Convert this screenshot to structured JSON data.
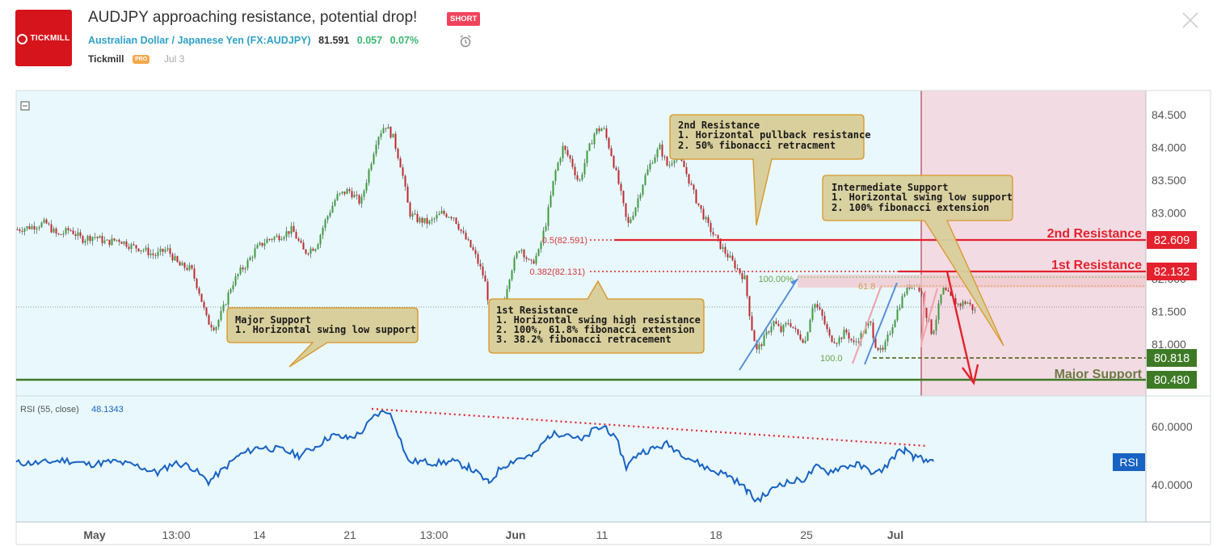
{
  "header": {
    "logo_text": "TICKMILL",
    "title": "AUDJPY approaching resistance, potential drop!",
    "badge": "SHORT",
    "pair_name": "Australian Dollar / Japanese Yen",
    "ticker_open": "(",
    "ticker": "FX:AUDJPY",
    "ticker_close": ")",
    "price": "81.591",
    "change": "0.057",
    "change_pct": "0.07%",
    "author": "Tickmill",
    "author_badge": "PRO",
    "date": "Jul 3"
  },
  "colors": {
    "chart_bg": "#e8f8fc",
    "bull": "#3d9c3d",
    "bear": "#c2272d",
    "resistance": "#e3222d",
    "support": "#3e7a26",
    "rsi": "#1862c4",
    "forecast_zone": "#f3dbe3",
    "callout": "#d8cf9c"
  },
  "chart_data": {
    "type": "candlestick",
    "symbol": "FX:AUDJPY",
    "price_axis": {
      "ticks": [
        84.5,
        84.0,
        83.5,
        83.0,
        82.0,
        81.5,
        81.0
      ],
      "tick_labels": [
        "84.500",
        "84.000",
        "83.500",
        "83.000",
        "82.000",
        "81.500",
        "81.000"
      ]
    },
    "time_axis": {
      "ticks": [
        "May",
        "13:00",
        "14",
        "21",
        "13:00",
        "Jun",
        "11",
        "18",
        "25",
        "Jul"
      ]
    },
    "close_path": [
      [
        0,
        82.75
      ],
      [
        20,
        82.8
      ],
      [
        35,
        82.85
      ],
      [
        50,
        82.65
      ],
      [
        65,
        82.75
      ],
      [
        80,
        82.6
      ],
      [
        95,
        82.65
      ],
      [
        110,
        82.55
      ],
      [
        125,
        82.6
      ],
      [
        140,
        82.5
      ],
      [
        155,
        82.45
      ],
      [
        170,
        82.35
      ],
      [
        185,
        82.45
      ],
      [
        200,
        82.2
      ],
      [
        215,
        82.15
      ],
      [
        225,
        81.8
      ],
      [
        235,
        81.35
      ],
      [
        245,
        81.25
      ],
      [
        255,
        81.55
      ],
      [
        265,
        81.9
      ],
      [
        275,
        82.1
      ],
      [
        285,
        82.25
      ],
      [
        295,
        82.45
      ],
      [
        310,
        82.6
      ],
      [
        325,
        82.65
      ],
      [
        340,
        82.75
      ],
      [
        355,
        82.4
      ],
      [
        370,
        82.5
      ],
      [
        380,
        82.85
      ],
      [
        395,
        83.25
      ],
      [
        410,
        83.35
      ],
      [
        425,
        83.15
      ],
      [
        435,
        83.65
      ],
      [
        445,
        84.15
      ],
      [
        455,
        84.35
      ],
      [
        465,
        84.15
      ],
      [
        475,
        83.7
      ],
      [
        485,
        83.0
      ],
      [
        495,
        82.9
      ],
      [
        510,
        82.85
      ],
      [
        525,
        83.0
      ],
      [
        540,
        82.95
      ],
      [
        550,
        82.7
      ],
      [
        565,
        82.4
      ],
      [
        578,
        82.0
      ],
      [
        588,
        81.3
      ],
      [
        598,
        81.45
      ],
      [
        610,
        82.1
      ],
      [
        622,
        82.5
      ],
      [
        635,
        82.2
      ],
      [
        645,
        82.4
      ],
      [
        655,
        82.9
      ],
      [
        665,
        83.6
      ],
      [
        675,
        84.0
      ],
      [
        685,
        83.8
      ],
      [
        695,
        83.45
      ],
      [
        705,
        83.9
      ],
      [
        715,
        84.25
      ],
      [
        725,
        84.3
      ],
      [
        735,
        83.9
      ],
      [
        745,
        83.4
      ],
      [
        755,
        82.8
      ],
      [
        765,
        83.1
      ],
      [
        775,
        83.5
      ],
      [
        785,
        83.8
      ],
      [
        795,
        84.0
      ],
      [
        805,
        83.7
      ],
      [
        815,
        83.9
      ],
      [
        825,
        83.7
      ],
      [
        840,
        83.2
      ],
      [
        855,
        82.8
      ],
      [
        870,
        82.5
      ],
      [
        885,
        82.25
      ],
      [
        900,
        82.0
      ],
      [
        908,
        81.3
      ],
      [
        915,
        80.9
      ],
      [
        925,
        81.1
      ],
      [
        935,
        81.35
      ],
      [
        945,
        81.2
      ],
      [
        955,
        81.35
      ],
      [
        965,
        81.15
      ],
      [
        975,
        81.05
      ],
      [
        985,
        81.65
      ],
      [
        995,
        81.45
      ],
      [
        1005,
        81.1
      ],
      [
        1015,
        81.05
      ],
      [
        1025,
        81.2
      ],
      [
        1035,
        81.0
      ],
      [
        1045,
        81.15
      ],
      [
        1055,
        81.35
      ],
      [
        1062,
        81.0
      ],
      [
        1070,
        80.85
      ],
      [
        1080,
        81.2
      ],
      [
        1090,
        81.55
      ],
      [
        1100,
        81.85
      ],
      [
        1110,
        81.95
      ],
      [
        1118,
        81.8
      ],
      [
        1125,
        81.45
      ],
      [
        1132,
        81.15
      ],
      [
        1138,
        81.45
      ],
      [
        1145,
        81.85
      ],
      [
        1155,
        81.7
      ],
      [
        1165,
        81.6
      ],
      [
        1175,
        81.65
      ],
      [
        1185,
        81.5
      ]
    ],
    "levels": [
      {
        "name": "2nd Resistance",
        "value": 82.609,
        "label": "82.609",
        "fib_label": "0.5(82.591)"
      },
      {
        "name": "1st Resistance",
        "value": 82.132,
        "label": "82.132",
        "fib_label": "0.382(82.131)"
      },
      {
        "name": "Intermediate Support",
        "value": 80.818,
        "label": "80.818"
      },
      {
        "name": "Major Support",
        "value": 80.48,
        "label": "80.480"
      }
    ],
    "fib_extension_labels": [
      "100.00%",
      "61.8",
      "100.0"
    ],
    "callouts": {
      "second_resistance": {
        "title": "2nd Resistance",
        "lines": [
          "1. Horizontal pullback resistance",
          "2. 50% fibonacci retracment"
        ]
      },
      "intermediate_support": {
        "title": "Intermediate Support",
        "lines": [
          "1. Horizontal swing low support",
          "2. 100% fibonacci extension"
        ]
      },
      "first_resistance": {
        "title": "1st Resistance",
        "lines": [
          "1. Horizontal swing high resistance",
          "2. 100%, 61.8% fibonacci extension",
          "3. 38.2% fibonacci retracement"
        ]
      },
      "major_support": {
        "title": "Major Support",
        "lines": [
          "1. Horizontal swing low support"
        ]
      }
    },
    "rsi": {
      "label": "RSI (55, close)",
      "value": "48.1343",
      "tag": "RSI",
      "ticks": [
        60,
        40
      ],
      "tick_labels": [
        "60.0000",
        "40.0000"
      ],
      "path": [
        [
          0,
          47.5
        ],
        [
          30,
          47.5
        ],
        [
          60,
          48.5
        ],
        [
          90,
          47.0
        ],
        [
          120,
          48.0
        ],
        [
          150,
          46.5
        ],
        [
          175,
          44.0
        ],
        [
          195,
          47.5
        ],
        [
          215,
          46.5
        ],
        [
          238,
          41.0
        ],
        [
          255,
          45.0
        ],
        [
          275,
          50.0
        ],
        [
          300,
          53.0
        ],
        [
          330,
          52.0
        ],
        [
          350,
          50.0
        ],
        [
          370,
          53.0
        ],
        [
          390,
          57.0
        ],
        [
          410,
          56.0
        ],
        [
          425,
          57.5
        ],
        [
          445,
          64.0
        ],
        [
          460,
          65.5
        ],
        [
          470,
          60.0
        ],
        [
          485,
          48.0
        ],
        [
          500,
          48.0
        ],
        [
          520,
          47.5
        ],
        [
          540,
          48.0
        ],
        [
          560,
          46.0
        ],
        [
          575,
          43.0
        ],
        [
          585,
          40.5
        ],
        [
          600,
          46.0
        ],
        [
          620,
          49.0
        ],
        [
          640,
          50.0
        ],
        [
          660,
          57.0
        ],
        [
          680,
          58.0
        ],
        [
          700,
          55.0
        ],
        [
          715,
          59.0
        ],
        [
          730,
          60.0
        ],
        [
          745,
          54.0
        ],
        [
          755,
          46.0
        ],
        [
          770,
          51.0
        ],
        [
          790,
          52.5
        ],
        [
          805,
          54.0
        ],
        [
          820,
          51.5
        ],
        [
          840,
          48.0
        ],
        [
          860,
          45.0
        ],
        [
          880,
          43.5
        ],
        [
          895,
          40.5
        ],
        [
          905,
          38.0
        ],
        [
          915,
          34.5
        ],
        [
          930,
          37.0
        ],
        [
          945,
          40.5
        ],
        [
          960,
          41.0
        ],
        [
          975,
          42.0
        ],
        [
          990,
          46.0
        ],
        [
          1005,
          44.5
        ],
        [
          1020,
          46.0
        ],
        [
          1040,
          47.0
        ],
        [
          1055,
          45.0
        ],
        [
          1065,
          44.0
        ],
        [
          1075,
          46.0
        ],
        [
          1090,
          51.0
        ],
        [
          1100,
          52.0
        ],
        [
          1110,
          49.0
        ],
        [
          1120,
          50.0
        ],
        [
          1128,
          47.0
        ],
        [
          1135,
          48.0
        ]
      ]
    }
  }
}
